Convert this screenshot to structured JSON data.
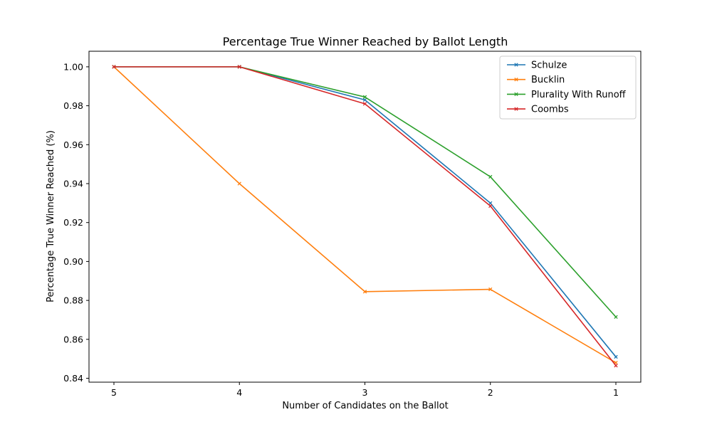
{
  "chart_data": {
    "type": "line",
    "title": "Percentage True Winner Reached by Ballot Length",
    "xlabel": "Number of Candidates on the Ballot",
    "ylabel": "Percentage True Winner Reached (%)",
    "categories": [
      "5",
      "4",
      "3",
      "2",
      "1"
    ],
    "ylim": [
      0.838,
      1.008
    ],
    "yticks": [
      0.84,
      0.86,
      0.88,
      0.9,
      0.92,
      0.94,
      0.96,
      0.98,
      1.0
    ],
    "ytick_labels": [
      "0.84",
      "0.86",
      "0.88",
      "0.90",
      "0.92",
      "0.94",
      "0.96",
      "0.98",
      "1.00"
    ],
    "grid": false,
    "legend_position": "top-right",
    "marker": "x",
    "series": [
      {
        "name": "Schulze",
        "color": "#1f77b4",
        "values": [
          1.0,
          1.0,
          0.983,
          0.93,
          0.851
        ]
      },
      {
        "name": "Bucklin",
        "color": "#ff7f0e",
        "values": [
          1.0,
          0.94,
          0.8845,
          0.8857,
          0.848
        ]
      },
      {
        "name": "Plurality With Runoff",
        "color": "#2ca02c",
        "values": [
          1.0,
          1.0,
          0.9845,
          0.9435,
          0.8715
        ]
      },
      {
        "name": "Coombs",
        "color": "#d62728",
        "values": [
          1.0,
          1.0,
          0.981,
          0.9285,
          0.8465
        ]
      }
    ]
  }
}
